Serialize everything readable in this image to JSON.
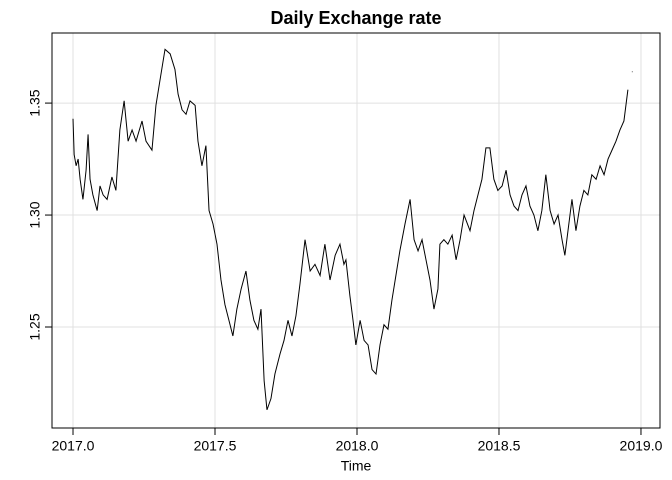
{
  "chart_data": {
    "type": "line",
    "title": "Daily Exchange rate",
    "x_label": "Time",
    "x": [
      2017.0,
      2017.004,
      2017.011,
      2017.018,
      2017.025,
      2017.035,
      2017.046,
      2017.053,
      2017.06,
      2017.07,
      2017.085,
      2017.095,
      2017.106,
      2017.12,
      2017.137,
      2017.151,
      2017.165,
      2017.18,
      2017.194,
      2017.208,
      2017.222,
      2017.243,
      2017.257,
      2017.278,
      2017.292,
      2017.306,
      2017.324,
      2017.342,
      2017.359,
      2017.37,
      2017.384,
      2017.398,
      2017.412,
      2017.43,
      2017.44,
      2017.454,
      2017.468,
      2017.479,
      2017.493,
      2017.507,
      2017.521,
      2017.535,
      2017.549,
      2017.563,
      2017.577,
      2017.592,
      2017.609,
      2017.623,
      2017.637,
      2017.651,
      2017.662,
      2017.673,
      2017.683,
      2017.697,
      2017.711,
      2017.729,
      2017.743,
      2017.757,
      2017.771,
      2017.785,
      2017.799,
      2017.817,
      2017.835,
      2017.852,
      2017.87,
      2017.887,
      2017.905,
      2017.923,
      2017.94,
      2017.954,
      2017.961,
      2017.975,
      2017.986,
      2017.996,
      2018.011,
      2018.025,
      2018.039,
      2018.053,
      2018.067,
      2018.081,
      2018.095,
      2018.109,
      2018.123,
      2018.137,
      2018.151,
      2018.169,
      2018.187,
      2018.201,
      2018.215,
      2018.229,
      2018.243,
      2018.257,
      2018.271,
      2018.285,
      2018.292,
      2018.306,
      2018.32,
      2018.335,
      2018.349,
      2018.363,
      2018.377,
      2018.398,
      2018.412,
      2018.426,
      2018.44,
      2018.454,
      2018.468,
      2018.482,
      2018.496,
      2018.511,
      2018.525,
      2018.539,
      2018.553,
      2018.567,
      2018.581,
      2018.595,
      2018.609,
      2018.623,
      2018.637,
      2018.651,
      2018.665,
      2018.68,
      2018.694,
      2018.708,
      2018.722,
      2018.732,
      2018.743,
      2018.757,
      2018.771,
      2018.785,
      2018.799,
      2018.813,
      2018.827,
      2018.842,
      2018.856,
      2018.87,
      2018.884,
      2018.898,
      2018.912,
      2018.926,
      2018.94,
      2018.954,
      2018.961,
      2018.968
    ],
    "values": [
      1.343,
      1.327,
      1.322,
      1.325,
      1.316,
      1.307,
      1.32,
      1.336,
      1.316,
      1.309,
      1.302,
      1.313,
      1.309,
      1.307,
      1.317,
      1.311,
      1.338,
      1.351,
      1.333,
      1.338,
      1.333,
      1.342,
      1.333,
      1.329,
      1.349,
      1.36,
      1.374,
      1.372,
      1.365,
      1.354,
      1.347,
      1.345,
      1.351,
      1.349,
      1.333,
      1.322,
      1.331,
      1.302,
      1.296,
      1.287,
      1.271,
      1.26,
      1.253,
      1.246,
      1.258,
      1.267,
      1.275,
      1.262,
      1.253,
      1.249,
      1.258,
      1.226,
      1.213,
      1.218,
      1.229,
      1.238,
      1.244,
      1.253,
      1.246,
      1.255,
      1.269,
      1.289,
      1.275,
      1.278,
      1.273,
      1.287,
      1.271,
      1.282,
      1.287,
      1.278,
      1.28,
      1.264,
      1.253,
      1.242,
      1.253,
      1.244,
      1.242,
      1.231,
      1.229,
      1.242,
      1.251,
      1.249,
      1.262,
      1.273,
      1.284,
      1.296,
      1.307,
      1.289,
      1.284,
      1.289,
      1.28,
      1.271,
      1.258,
      1.267,
      1.287,
      1.289,
      1.287,
      1.291,
      1.28,
      1.289,
      1.3,
      1.293,
      1.302,
      1.309,
      1.316,
      1.33,
      1.33,
      1.316,
      1.311,
      1.313,
      1.32,
      1.309,
      1.304,
      1.302,
      1.309,
      1.313,
      1.304,
      1.3,
      1.293,
      1.302,
      1.318,
      1.302,
      1.296,
      1.3,
      1.289,
      1.282,
      1.293,
      1.307,
      1.293,
      1.304,
      1.311,
      1.309,
      1.318,
      1.316,
      1.322,
      1.318,
      1.325,
      1.329,
      1.333,
      1.338,
      1.342,
      1.356,
      null,
      1.364
    ],
    "color": "#000000",
    "xlim": [
      2016.926,
      2019.067
    ],
    "ylim": [
      1.2049,
      1.3813
    ],
    "xticks": [
      {
        "value": 2017.0,
        "label": "2017.0"
      },
      2017.5,
      {
        "value": 2018.0,
        "label": "2018.0"
      },
      2018.5,
      {
        "value": 2019.0,
        "label": "2019.0"
      }
    ],
    "yticks": [
      1.25,
      {
        "value": 1.3,
        "label": "1.30"
      },
      1.35
    ],
    "grid": true
  }
}
